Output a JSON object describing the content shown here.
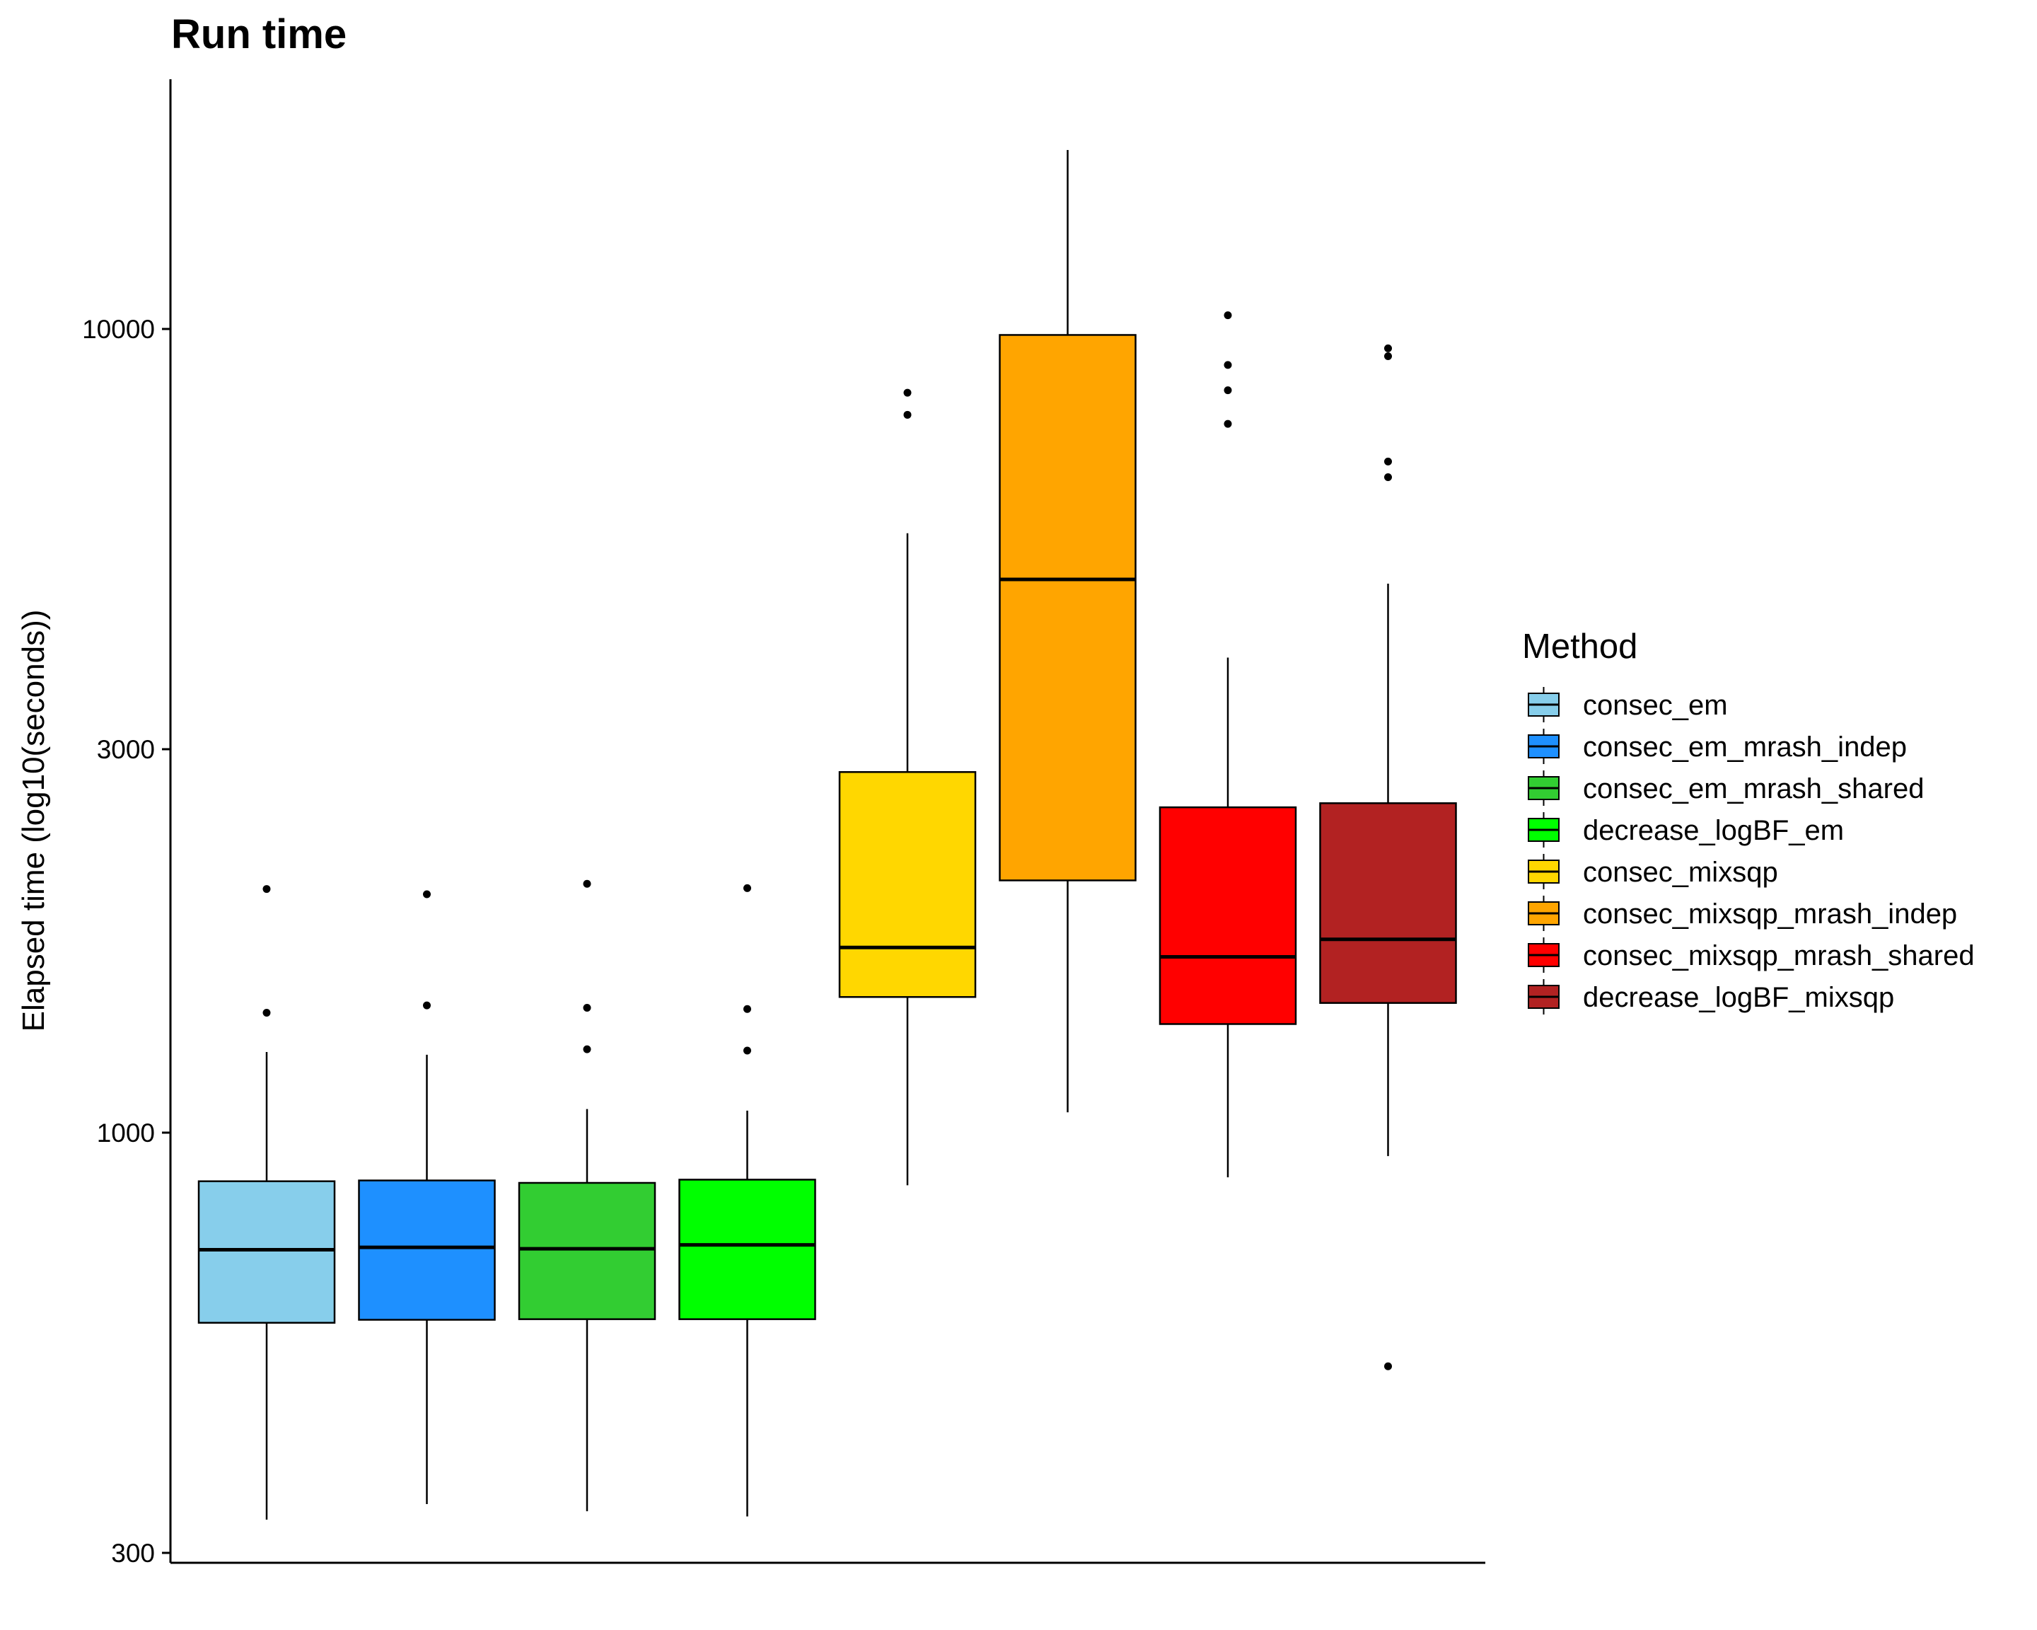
{
  "chart_data": {
    "type": "box",
    "title": "Run time",
    "xlabel": "",
    "ylabel": "Elapsed time (log10(seconds))",
    "y_scale": "log10",
    "ylim": [
      290,
      18000
    ],
    "y_ticks": [
      300,
      1000,
      3000,
      10000
    ],
    "y_tick_labels": [
      "300",
      "1000",
      "3000",
      "10000"
    ],
    "grid": false,
    "legend": {
      "title": "Method",
      "position": "right"
    },
    "series": [
      {
        "name": "consec_em",
        "color": "#87CEEB",
        "whisker_low": 330,
        "q1": 580,
        "median": 715,
        "q3": 870,
        "whisker_high": 1260,
        "outliers": [
          1410,
          2010
        ]
      },
      {
        "name": "consec_em_mrash_indep",
        "color": "#1E90FF",
        "whisker_low": 345,
        "q1": 585,
        "median": 720,
        "q3": 872,
        "whisker_high": 1250,
        "outliers": [
          1440,
          1980
        ]
      },
      {
        "name": "consec_em_mrash_shared",
        "color": "#32CD32",
        "whisker_low": 338,
        "q1": 586,
        "median": 717,
        "q3": 866,
        "whisker_high": 1070,
        "outliers": [
          1270,
          1430,
          2040
        ]
      },
      {
        "name": "decrease_logBF_em",
        "color": "#00FF00",
        "whisker_low": 333,
        "q1": 586,
        "median": 725,
        "q3": 874,
        "whisker_high": 1065,
        "outliers": [
          1265,
          1425,
          2015
        ]
      },
      {
        "name": "consec_mixsqp",
        "color": "#FFD700",
        "whisker_low": 860,
        "q1": 1475,
        "median": 1700,
        "q3": 2810,
        "whisker_high": 5570,
        "outliers": [
          7820,
          8330
        ]
      },
      {
        "name": "consec_mixsqp_mrash_indep",
        "color": "#FFA500",
        "whisker_low": 1060,
        "q1": 2060,
        "median": 4880,
        "q3": 9830,
        "whisker_high": 16700,
        "outliers": []
      },
      {
        "name": "consec_mixsqp_mrash_shared",
        "color": "#FF0000",
        "whisker_low": 880,
        "q1": 1365,
        "median": 1655,
        "q3": 2540,
        "whisker_high": 3900,
        "outliers": [
          7620,
          8390,
          9020,
          10400
        ]
      },
      {
        "name": "decrease_logBF_mixsqp",
        "color": "#B22222",
        "whisker_low": 935,
        "q1": 1450,
        "median": 1740,
        "q3": 2570,
        "whisker_high": 4820,
        "outliers": [
          512,
          6540,
          6840,
          9250,
          9460
        ]
      }
    ]
  }
}
